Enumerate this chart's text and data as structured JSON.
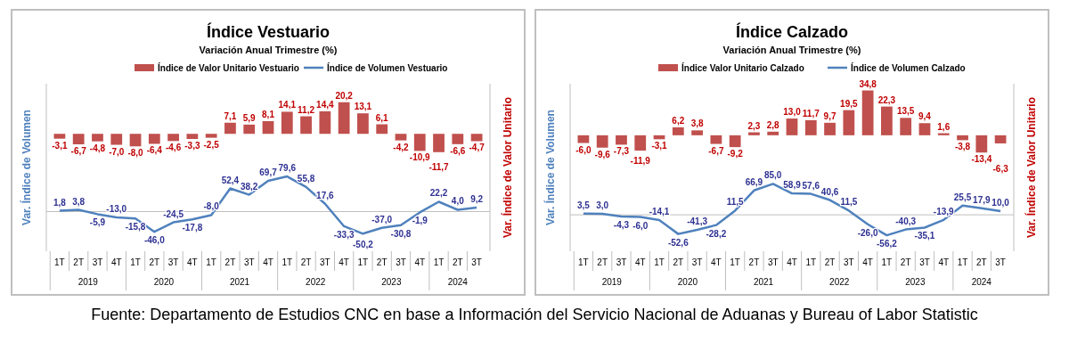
{
  "chart_data": [
    {
      "type": "bar",
      "title": "Índice Vestuario",
      "subtitle": "Variación Anual Trimestre  (%)",
      "ylim": [
        -90,
        290
      ],
      "y2lim": [
        -75,
        32
      ],
      "ylabel": "Var. Índice de Volumen",
      "y2label": "Var. Índice de Valor Unitario",
      "categories": [
        "1T",
        "2T",
        "3T",
        "4T",
        "1T",
        "2T",
        "3T",
        "4T",
        "1T",
        "2T",
        "3T",
        "4T",
        "1T",
        "2T",
        "3T",
        "4T",
        "1T",
        "2T",
        "3T",
        "4T",
        "1T",
        "2T",
        "3T"
      ],
      "legend": "top",
      "grid": false,
      "marker": "none",
      "line_style": "solid",
      "series": [
        {
          "name": "Índice de Valor Unitario Vestuario",
          "axis": "y2",
          "color": "#c0504d",
          "values": [
            -3.1,
            -6.7,
            -4.8,
            -7.0,
            -8.0,
            -6.4,
            -4.6,
            -3.3,
            -2.5,
            7.1,
            5.9,
            8.1,
            14.1,
            11.2,
            14.4,
            20.2,
            13.1,
            6.1,
            -4.2,
            -10.9,
            -11.7,
            -6.6,
            -4.7
          ],
          "value_labels": [
            "-3,1",
            "-6,7",
            "-4,8",
            "-7,0",
            "-8,0",
            "-6,4",
            "-4,6",
            "-3,3",
            "-2,5",
            "7,1",
            "5,9",
            "8,1",
            "14,1",
            "11,2",
            "14,4",
            "20,2",
            "13,1",
            "6,1",
            "-4,2",
            "-10,9",
            "-11,7",
            "-6,6",
            "-4,7"
          ]
        },
        {
          "name": "Índice de Volumen Vestuario",
          "type": "line",
          "axis": "y",
          "color": "#4f81bd",
          "values": [
            1.8,
            3.8,
            -5.9,
            -13.0,
            -15.8,
            -46.0,
            -24.5,
            -17.8,
            -8.0,
            52.4,
            38.2,
            69.7,
            79.6,
            55.8,
            17.6,
            -33.3,
            -50.2,
            -37.0,
            -30.8,
            -1.9,
            22.2,
            4.0,
            9.2
          ],
          "value_labels": [
            "1,8",
            "3,8",
            "-5,9",
            "-13,0",
            "-15,8",
            "-46,0",
            "-24,5",
            "-17,8",
            "-8,0",
            "52,4",
            "38,2",
            "69,7",
            "79,6",
            "55,8",
            "17,6",
            "-33,3",
            "-50,2",
            "-37,0",
            "-30,8",
            "-1,9",
            "22,2",
            "4,0",
            "9,2"
          ]
        }
      ],
      "annotations": [
        "2019",
        "2020",
        "2021",
        "2022",
        "2023",
        "2024"
      ]
    },
    {
      "type": "bar",
      "title": "Índice Calzado",
      "subtitle": "Variación Anual Trimestre  (%)",
      "ylim": [
        -100,
        360
      ],
      "y2lim": [
        -90,
        40
      ],
      "ylabel": "Var. Índice de Volumen",
      "y2label": "Var. Índice de Valor Unitario",
      "categories": [
        "1T",
        "2T",
        "3T",
        "4T",
        "1T",
        "2T",
        "3T",
        "4T",
        "1T",
        "2T",
        "3T",
        "4T",
        "1T",
        "2T",
        "3T",
        "4T",
        "1T",
        "2T",
        "3T",
        "4T",
        "1T",
        "2T",
        "3T"
      ],
      "legend": "top",
      "grid": false,
      "marker": "none",
      "line_style": "solid",
      "series": [
        {
          "name": "Índice Valor Unitario Calzado",
          "axis": "y2",
          "color": "#c0504d",
          "values": [
            -6.0,
            -9.6,
            -7.3,
            -11.9,
            -3.1,
            6.2,
            3.8,
            -6.7,
            -9.2,
            2.3,
            2.8,
            13.0,
            11.7,
            9.7,
            19.5,
            34.8,
            22.3,
            13.5,
            9.4,
            1.6,
            -3.8,
            -13.4,
            -6.3
          ],
          "value_labels": [
            "-6,0",
            "-9,6",
            "-7,3",
            "-11,9",
            "-3,1",
            "6,2",
            "3,8",
            "-6,7",
            "-9,2",
            "2,3",
            "2,8",
            "13,0",
            "11,7",
            "9,7",
            "19,5",
            "34,8",
            "22,3",
            "13,5",
            "9,4",
            "1,6",
            "-3,8",
            "-13,4",
            "-6,3"
          ]
        },
        {
          "name": "Índice de Volumen Calzado",
          "type": "line",
          "axis": "y",
          "color": "#4f81bd",
          "values": [
            3.5,
            3.0,
            -4.3,
            -6.0,
            -14.1,
            -52.6,
            -41.3,
            -28.2,
            11.5,
            66.9,
            85.0,
            58.9,
            57.6,
            40.6,
            11.5,
            -26.0,
            -56.2,
            -40.3,
            -35.1,
            -13.9,
            25.5,
            17.9,
            10.0
          ],
          "value_labels": [
            "3,5",
            "3,0",
            "-4,3",
            "-6,0",
            "-14,1",
            "-52,6",
            "-41,3",
            "-28,2",
            "11,5",
            "66,9",
            "85,0",
            "58,9",
            "57,6",
            "40,6",
            "11,5",
            "-26,0",
            "-56,2",
            "-40,3",
            "-35,1",
            "-13,9",
            "25,5",
            "17,9",
            "10,0"
          ]
        }
      ],
      "annotations": [
        "2019",
        "2020",
        "2021",
        "2022",
        "2023",
        "2024",
        "Fuente: Departamento de Estudios CNC en base a Información del Servicio Nacional de Aduanas y Bureau of Labor Statistic"
      ]
    }
  ]
}
